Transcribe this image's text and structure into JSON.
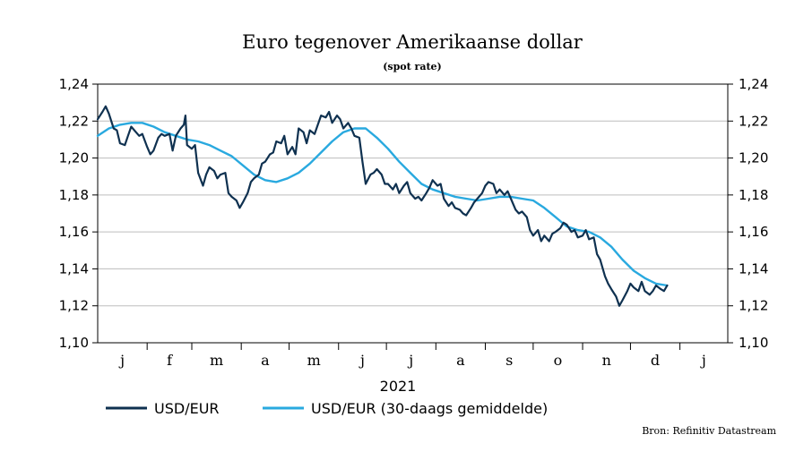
{
  "chart_data": {
    "type": "line",
    "title": "Euro tegenover Amerikaanse dollar",
    "subtitle": "(spot rate)",
    "xlabel": "2021",
    "source": "Bron: Refinitiv Datastream",
    "ylim": [
      1.1,
      1.24
    ],
    "y_ticks": [
      "1,10",
      "1,12",
      "1,14",
      "1,16",
      "1,18",
      "1,20",
      "1,22",
      "1,24"
    ],
    "x_ticks": [
      "j",
      "f",
      "m",
      "a",
      "m",
      "j",
      "j",
      "a",
      "s",
      "o",
      "n",
      "d",
      "j"
    ],
    "grid": "horizontal",
    "secondary_y_axis": true,
    "legend_position": "bottom-left",
    "x_domain": [
      "2021-01-01",
      "2022-01-31"
    ],
    "series": [
      {
        "name": "USD/EUR",
        "color": "#0f3150",
        "points": [
          [
            "2021-01-01",
            1.221
          ],
          [
            "2021-01-04",
            1.225
          ],
          [
            "2021-01-06",
            1.228
          ],
          [
            "2021-01-08",
            1.224
          ],
          [
            "2021-01-11",
            1.216
          ],
          [
            "2021-01-13",
            1.215
          ],
          [
            "2021-01-15",
            1.208
          ],
          [
            "2021-01-18",
            1.207
          ],
          [
            "2021-01-20",
            1.212
          ],
          [
            "2021-01-22",
            1.217
          ],
          [
            "2021-01-25",
            1.214
          ],
          [
            "2021-01-27",
            1.212
          ],
          [
            "2021-01-29",
            1.213
          ],
          [
            "2021-02-01",
            1.206
          ],
          [
            "2021-02-03",
            1.202
          ],
          [
            "2021-02-05",
            1.204
          ],
          [
            "2021-02-08",
            1.211
          ],
          [
            "2021-02-10",
            1.213
          ],
          [
            "2021-02-12",
            1.212
          ],
          [
            "2021-02-15",
            1.213
          ],
          [
            "2021-02-17",
            1.204
          ],
          [
            "2021-02-19",
            1.212
          ],
          [
            "2021-02-22",
            1.216
          ],
          [
            "2021-02-24",
            1.218
          ],
          [
            "2021-02-25",
            1.223
          ],
          [
            "2021-02-26",
            1.207
          ],
          [
            "2021-03-01",
            1.205
          ],
          [
            "2021-03-03",
            1.207
          ],
          [
            "2021-03-05",
            1.192
          ],
          [
            "2021-03-08",
            1.185
          ],
          [
            "2021-03-10",
            1.191
          ],
          [
            "2021-03-12",
            1.195
          ],
          [
            "2021-03-15",
            1.193
          ],
          [
            "2021-03-17",
            1.189
          ],
          [
            "2021-03-19",
            1.191
          ],
          [
            "2021-03-22",
            1.192
          ],
          [
            "2021-03-24",
            1.181
          ],
          [
            "2021-03-26",
            1.179
          ],
          [
            "2021-03-29",
            1.177
          ],
          [
            "2021-03-31",
            1.173
          ],
          [
            "2021-04-02",
            1.176
          ],
          [
            "2021-04-05",
            1.181
          ],
          [
            "2021-04-07",
            1.187
          ],
          [
            "2021-04-09",
            1.189
          ],
          [
            "2021-04-12",
            1.191
          ],
          [
            "2021-04-14",
            1.197
          ],
          [
            "2021-04-16",
            1.198
          ],
          [
            "2021-04-19",
            1.202
          ],
          [
            "2021-04-21",
            1.203
          ],
          [
            "2021-04-23",
            1.209
          ],
          [
            "2021-04-26",
            1.208
          ],
          [
            "2021-04-28",
            1.212
          ],
          [
            "2021-04-30",
            1.202
          ],
          [
            "2021-05-03",
            1.206
          ],
          [
            "2021-05-05",
            1.202
          ],
          [
            "2021-05-07",
            1.216
          ],
          [
            "2021-05-10",
            1.214
          ],
          [
            "2021-05-12",
            1.208
          ],
          [
            "2021-05-14",
            1.215
          ],
          [
            "2021-05-17",
            1.213
          ],
          [
            "2021-05-19",
            1.218
          ],
          [
            "2021-05-21",
            1.223
          ],
          [
            "2021-05-24",
            1.222
          ],
          [
            "2021-05-26",
            1.225
          ],
          [
            "2021-05-28",
            1.219
          ],
          [
            "2021-05-31",
            1.223
          ],
          [
            "2021-06-02",
            1.221
          ],
          [
            "2021-06-04",
            1.216
          ],
          [
            "2021-06-07",
            1.219
          ],
          [
            "2021-06-09",
            1.216
          ],
          [
            "2021-06-11",
            1.212
          ],
          [
            "2021-06-14",
            1.211
          ],
          [
            "2021-06-16",
            1.198
          ],
          [
            "2021-06-18",
            1.186
          ],
          [
            "2021-06-21",
            1.191
          ],
          [
            "2021-06-23",
            1.192
          ],
          [
            "2021-06-25",
            1.194
          ],
          [
            "2021-06-28",
            1.191
          ],
          [
            "2021-06-30",
            1.186
          ],
          [
            "2021-07-02",
            1.186
          ],
          [
            "2021-07-05",
            1.183
          ],
          [
            "2021-07-07",
            1.186
          ],
          [
            "2021-07-09",
            1.181
          ],
          [
            "2021-07-12",
            1.185
          ],
          [
            "2021-07-14",
            1.187
          ],
          [
            "2021-07-16",
            1.181
          ],
          [
            "2021-07-19",
            1.178
          ],
          [
            "2021-07-21",
            1.179
          ],
          [
            "2021-07-23",
            1.177
          ],
          [
            "2021-07-26",
            1.181
          ],
          [
            "2021-07-28",
            1.184
          ],
          [
            "2021-07-30",
            1.188
          ],
          [
            "2021-08-02",
            1.185
          ],
          [
            "2021-08-04",
            1.186
          ],
          [
            "2021-08-06",
            1.178
          ],
          [
            "2021-08-09",
            1.174
          ],
          [
            "2021-08-11",
            1.176
          ],
          [
            "2021-08-13",
            1.173
          ],
          [
            "2021-08-16",
            1.172
          ],
          [
            "2021-08-18",
            1.17
          ],
          [
            "2021-08-20",
            1.169
          ],
          [
            "2021-08-23",
            1.173
          ],
          [
            "2021-08-25",
            1.176
          ],
          [
            "2021-08-27",
            1.178
          ],
          [
            "2021-08-30",
            1.181
          ],
          [
            "2021-09-01",
            1.185
          ],
          [
            "2021-09-03",
            1.187
          ],
          [
            "2021-09-06",
            1.186
          ],
          [
            "2021-09-08",
            1.181
          ],
          [
            "2021-09-10",
            1.183
          ],
          [
            "2021-09-13",
            1.18
          ],
          [
            "2021-09-15",
            1.182
          ],
          [
            "2021-09-17",
            1.178
          ],
          [
            "2021-09-20",
            1.172
          ],
          [
            "2021-09-22",
            1.17
          ],
          [
            "2021-09-24",
            1.171
          ],
          [
            "2021-09-27",
            1.168
          ],
          [
            "2021-09-29",
            1.161
          ],
          [
            "2021-10-01",
            1.158
          ],
          [
            "2021-10-04",
            1.161
          ],
          [
            "2021-10-06",
            1.155
          ],
          [
            "2021-10-08",
            1.158
          ],
          [
            "2021-10-11",
            1.155
          ],
          [
            "2021-10-13",
            1.159
          ],
          [
            "2021-10-15",
            1.16
          ],
          [
            "2021-10-18",
            1.162
          ],
          [
            "2021-10-20",
            1.165
          ],
          [
            "2021-10-22",
            1.164
          ],
          [
            "2021-10-25",
            1.16
          ],
          [
            "2021-10-27",
            1.161
          ],
          [
            "2021-10-29",
            1.157
          ],
          [
            "2021-11-01",
            1.158
          ],
          [
            "2021-11-03",
            1.161
          ],
          [
            "2021-11-05",
            1.156
          ],
          [
            "2021-11-08",
            1.157
          ],
          [
            "2021-11-10",
            1.148
          ],
          [
            "2021-11-12",
            1.145
          ],
          [
            "2021-11-15",
            1.136
          ],
          [
            "2021-11-17",
            1.132
          ],
          [
            "2021-11-19",
            1.129
          ],
          [
            "2021-11-22",
            1.125
          ],
          [
            "2021-11-24",
            1.12
          ],
          [
            "2021-11-26",
            1.123
          ],
          [
            "2021-11-29",
            1.128
          ],
          [
            "2021-12-01",
            1.132
          ],
          [
            "2021-12-03",
            1.13
          ],
          [
            "2021-12-06",
            1.128
          ],
          [
            "2021-12-08",
            1.133
          ],
          [
            "2021-12-10",
            1.128
          ],
          [
            "2021-12-13",
            1.126
          ],
          [
            "2021-12-15",
            1.128
          ],
          [
            "2021-12-17",
            1.131
          ],
          [
            "2021-12-20",
            1.129
          ],
          [
            "2021-12-22",
            1.128
          ],
          [
            "2021-12-24",
            1.131
          ]
        ]
      },
      {
        "name": "USD/EUR (30-daags gemiddelde)",
        "color": "#29a9df",
        "points": [
          [
            "2021-01-01",
            1.212
          ],
          [
            "2021-01-08",
            1.216
          ],
          [
            "2021-01-15",
            1.218
          ],
          [
            "2021-01-22",
            1.219
          ],
          [
            "2021-01-29",
            1.219
          ],
          [
            "2021-02-05",
            1.217
          ],
          [
            "2021-02-12",
            1.214
          ],
          [
            "2021-02-19",
            1.212
          ],
          [
            "2021-02-26",
            1.21
          ],
          [
            "2021-03-05",
            1.209
          ],
          [
            "2021-03-12",
            1.207
          ],
          [
            "2021-03-19",
            1.204
          ],
          [
            "2021-03-26",
            1.201
          ],
          [
            "2021-04-02",
            1.196
          ],
          [
            "2021-04-09",
            1.191
          ],
          [
            "2021-04-16",
            1.188
          ],
          [
            "2021-04-23",
            1.187
          ],
          [
            "2021-04-30",
            1.189
          ],
          [
            "2021-05-07",
            1.192
          ],
          [
            "2021-05-14",
            1.197
          ],
          [
            "2021-05-21",
            1.203
          ],
          [
            "2021-05-28",
            1.209
          ],
          [
            "2021-06-04",
            1.214
          ],
          [
            "2021-06-11",
            1.216
          ],
          [
            "2021-06-18",
            1.216
          ],
          [
            "2021-06-25",
            1.211
          ],
          [
            "2021-07-02",
            1.205
          ],
          [
            "2021-07-09",
            1.198
          ],
          [
            "2021-07-16",
            1.192
          ],
          [
            "2021-07-23",
            1.186
          ],
          [
            "2021-07-30",
            1.183
          ],
          [
            "2021-08-06",
            1.181
          ],
          [
            "2021-08-13",
            1.179
          ],
          [
            "2021-08-20",
            1.178
          ],
          [
            "2021-08-27",
            1.177
          ],
          [
            "2021-09-03",
            1.178
          ],
          [
            "2021-09-10",
            1.179
          ],
          [
            "2021-09-17",
            1.179
          ],
          [
            "2021-09-24",
            1.178
          ],
          [
            "2021-10-01",
            1.177
          ],
          [
            "2021-10-08",
            1.173
          ],
          [
            "2021-10-15",
            1.168
          ],
          [
            "2021-10-22",
            1.163
          ],
          [
            "2021-10-29",
            1.161
          ],
          [
            "2021-11-05",
            1.16
          ],
          [
            "2021-11-12",
            1.157
          ],
          [
            "2021-11-19",
            1.152
          ],
          [
            "2021-11-26",
            1.145
          ],
          [
            "2021-12-03",
            1.139
          ],
          [
            "2021-12-10",
            1.135
          ],
          [
            "2021-12-17",
            1.132
          ],
          [
            "2021-12-24",
            1.131
          ]
        ]
      }
    ]
  }
}
